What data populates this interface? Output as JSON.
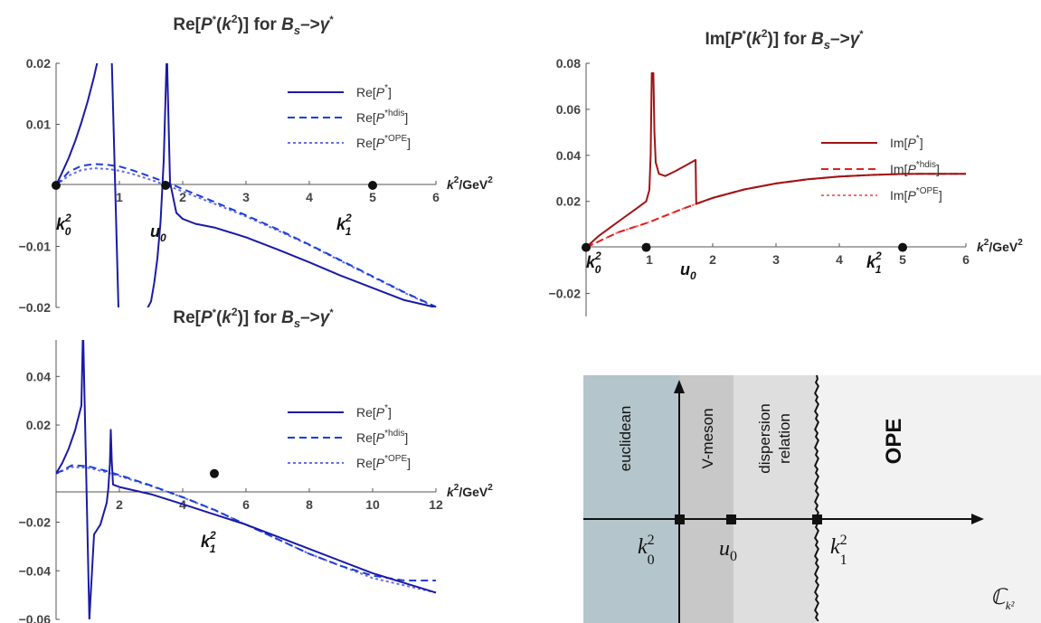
{
  "chart_data": [
    {
      "type": "line",
      "title": "Re[P*(k²)] for B_s→γ*",
      "xlabel": "k²/GeV²",
      "xlim": [
        0,
        6
      ],
      "ylim": [
        -0.02,
        0.02
      ],
      "xticks": [
        "1",
        "2",
        "3",
        "4",
        "5",
        "6"
      ],
      "yticks": [
        "0.02",
        "0.01",
        "−0.01",
        "−0.02"
      ],
      "legend_position": "top-right",
      "series": [
        {
          "name": "Re[P*]",
          "style": "solid",
          "color": "#1a1aa6",
          "x": [
            0,
            0.1,
            0.2,
            0.3,
            0.4,
            0.5,
            0.6,
            0.7,
            0.8,
            0.85,
            1.05,
            1.1,
            1.2,
            1.3,
            1.4,
            1.5,
            1.55,
            1.6,
            1.65,
            1.7,
            1.75,
            1.8,
            1.9,
            2.0,
            2.2,
            2.5,
            3.0,
            3.5,
            4.0,
            4.5,
            5.0,
            5.5,
            6.0
          ],
          "y": [
            0,
            0.0022,
            0.0045,
            0.0072,
            0.0103,
            0.0138,
            0.0178,
            0.0225,
            0.028,
            0.032,
            -0.045,
            -0.028,
            -0.025,
            -0.023,
            -0.021,
            -0.019,
            -0.016,
            -0.012,
            -0.006,
            0.004,
            0.022,
            0.0005,
            -0.0045,
            -0.0055,
            -0.0063,
            -0.0069,
            -0.0085,
            -0.0105,
            -0.0126,
            -0.0148,
            -0.0168,
            -0.0188,
            -0.02
          ]
        },
        {
          "name": "Re[P*hdis]",
          "style": "dashed",
          "color": "#1a3fd6",
          "x": [
            0,
            0.2,
            0.4,
            0.6,
            0.8,
            1.0,
            1.2,
            1.5,
            1.8,
            2.0,
            2.5,
            3.0,
            3.5,
            4.0,
            4.5,
            5.0,
            5.5,
            6.0
          ],
          "y": [
            0,
            0.0022,
            0.0032,
            0.0035,
            0.0034,
            0.0031,
            0.0025,
            0.0014,
            0.0003,
            -0.0006,
            -0.0027,
            -0.0049,
            -0.0072,
            -0.0097,
            -0.0123,
            -0.0149,
            -0.0175,
            -0.0199
          ]
        },
        {
          "name": "Re[P*OPE]",
          "style": "dotted",
          "color": "#6b6bf0",
          "x": [
            0,
            0.2,
            0.4,
            0.6,
            0.8,
            1.0,
            1.2,
            1.5,
            1.8,
            2.0,
            2.5,
            3.0,
            3.5,
            4.0,
            4.5,
            5.0,
            5.5,
            6.0
          ],
          "y": [
            0,
            0.0016,
            0.0025,
            0.0028,
            0.0027,
            0.0024,
            0.0019,
            0.0009,
            -0.0002,
            -0.001,
            -0.003,
            -0.0051,
            -0.0074,
            -0.0098,
            -0.0124,
            -0.015,
            -0.0176,
            -0.02
          ]
        }
      ],
      "markers": [
        {
          "label": "k0²",
          "x": 0,
          "y": 0
        },
        {
          "label": "u0",
          "x": 1.73,
          "y": 0
        },
        {
          "label": "k1²",
          "x": 5,
          "y": 0
        }
      ]
    },
    {
      "type": "line",
      "title": "Im[P*(k²)] for B_s→γ*",
      "xlabel": "k²/GeV²",
      "xlim": [
        0,
        6
      ],
      "ylim": [
        -0.03,
        0.08
      ],
      "xticks": [
        "1",
        "2",
        "3",
        "4",
        "5",
        "6"
      ],
      "yticks": [
        "0.08",
        "0.06",
        "0.04",
        "0.02",
        "−0.02"
      ],
      "legend_position": "right",
      "series": [
        {
          "name": "Im[P*]",
          "style": "solid",
          "color": "#a01414",
          "x": [
            0,
            0.2,
            0.4,
            0.6,
            0.8,
            0.95,
            1.0,
            1.02,
            1.04,
            1.06,
            1.08,
            1.1,
            1.15,
            1.25,
            1.4,
            1.6,
            1.73,
            1.74,
            2.0,
            2.5,
            3.0,
            3.5,
            4.0,
            4.5,
            5.0,
            5.5,
            6.0
          ],
          "y": [
            0,
            0.005,
            0.009,
            0.013,
            0.017,
            0.02,
            0.025,
            0.04,
            0.08,
            0.08,
            0.05,
            0.037,
            0.032,
            0.031,
            0.033,
            0.036,
            0.038,
            0.019,
            0.0215,
            0.0252,
            0.0278,
            0.0296,
            0.0308,
            0.0315,
            0.0319,
            0.032,
            0.032
          ]
        },
        {
          "name": "Im[P*hdis]",
          "style": "dashed",
          "color": "#e02020",
          "x": [
            0,
            0.5,
            1.0,
            1.5,
            2.0,
            2.5,
            3.0,
            3.5,
            4.0,
            4.5,
            5.0,
            5.5,
            6.0
          ],
          "y": [
            0,
            0.0065,
            0.011,
            0.0165,
            0.0215,
            0.0252,
            0.0278,
            0.0296,
            0.0308,
            0.0315,
            0.0319,
            0.032,
            0.032
          ]
        },
        {
          "name": "Im[P*OPE]",
          "style": "dotted",
          "color": "#f07070",
          "x": [
            0,
            0.5,
            1.0,
            1.5,
            2.0,
            2.5,
            3.0,
            3.5,
            4.0,
            4.5,
            5.0,
            5.5,
            6.0
          ],
          "y": [
            0,
            0.0065,
            0.011,
            0.0165,
            0.0215,
            0.0252,
            0.0278,
            0.0296,
            0.0308,
            0.0315,
            0.0319,
            0.032,
            0.032
          ]
        }
      ],
      "markers": [
        {
          "label": "k0²",
          "x": 0,
          "y": 0
        },
        {
          "label": "u0",
          "x": 0.95,
          "y": 0
        },
        {
          "label": "k1²",
          "x": 5,
          "y": 0
        }
      ]
    },
    {
      "type": "line",
      "title": "Re[P*(k²)] for B_s→γ*",
      "xlabel": "k²/GeV²",
      "xlim": [
        0,
        12
      ],
      "ylim": [
        -0.06,
        0.055
      ],
      "xticks": [
        "2",
        "4",
        "6",
        "8",
        "10",
        "12"
      ],
      "yticks": [
        "0.04",
        "0.02",
        "−0.02",
        "−0.04",
        "−0.06"
      ],
      "legend_position": "top-right",
      "series": [
        {
          "name": "Re[P*]",
          "style": "solid",
          "color": "#1a1aa6",
          "x": [
            0,
            0.2,
            0.4,
            0.6,
            0.8,
            0.85,
            1.05,
            1.2,
            1.4,
            1.6,
            1.65,
            1.7,
            1.73,
            1.76,
            1.8,
            2.0,
            3.0,
            4.0,
            5.0,
            6.0,
            7.0,
            8.0,
            9.0,
            10.0,
            11.0,
            12.0
          ],
          "y": [
            0,
            0.0045,
            0.0103,
            0.0178,
            0.028,
            0.06,
            -0.06,
            -0.025,
            -0.021,
            -0.012,
            -0.006,
            0.004,
            0.018,
            0.005,
            -0.0045,
            -0.0055,
            -0.0085,
            -0.0126,
            -0.0168,
            -0.021,
            -0.026,
            -0.031,
            -0.036,
            -0.041,
            -0.045,
            -0.049
          ]
        },
        {
          "name": "Re[P*hdis]",
          "style": "dashed",
          "color": "#1a3fd6",
          "x": [
            0,
            0.5,
            1.0,
            1.5,
            2.0,
            3.0,
            4.0,
            5.0,
            6.0,
            7.0,
            8.0,
            9.0,
            10.0,
            11.0,
            12.0
          ],
          "y": [
            0,
            0.0034,
            0.0031,
            0.0014,
            -0.0006,
            -0.0049,
            -0.0097,
            -0.0149,
            -0.021,
            -0.027,
            -0.033,
            -0.038,
            -0.042,
            -0.044,
            -0.044
          ]
        },
        {
          "name": "Re[P*OPE]",
          "style": "dotted",
          "color": "#6b6bf0",
          "x": [
            0,
            0.5,
            1.0,
            1.5,
            2.0,
            3.0,
            4.0,
            5.0,
            6.0,
            7.0,
            8.0,
            9.0,
            10.0,
            11.0,
            12.0
          ],
          "y": [
            0,
            0.0027,
            0.0024,
            0.0009,
            -0.001,
            -0.0051,
            -0.0098,
            -0.015,
            -0.021,
            -0.027,
            -0.033,
            -0.038,
            -0.043,
            -0.046,
            -0.049
          ]
        }
      ],
      "markers": [
        {
          "label": "k1²",
          "x": 5,
          "y": 0
        }
      ]
    }
  ],
  "diagram": {
    "regions": [
      {
        "label": "euclidean",
        "color": "#b4c6cc"
      },
      {
        "label": "V-meson",
        "color": "#c8c8c8"
      },
      {
        "label": "dispersion relation",
        "line1": "dispersion",
        "line2": "relation",
        "color": "#dedede"
      },
      {
        "label": "OPE",
        "color": "#f2f2f2"
      }
    ],
    "points": [
      {
        "label": "k0",
        "sup": "2",
        "sub": "0"
      },
      {
        "label": "u",
        "sub": "0"
      },
      {
        "label": "k1",
        "sup": "2",
        "sub": "1"
      }
    ],
    "plane_label": "ℂ",
    "plane_sub": "k²"
  }
}
